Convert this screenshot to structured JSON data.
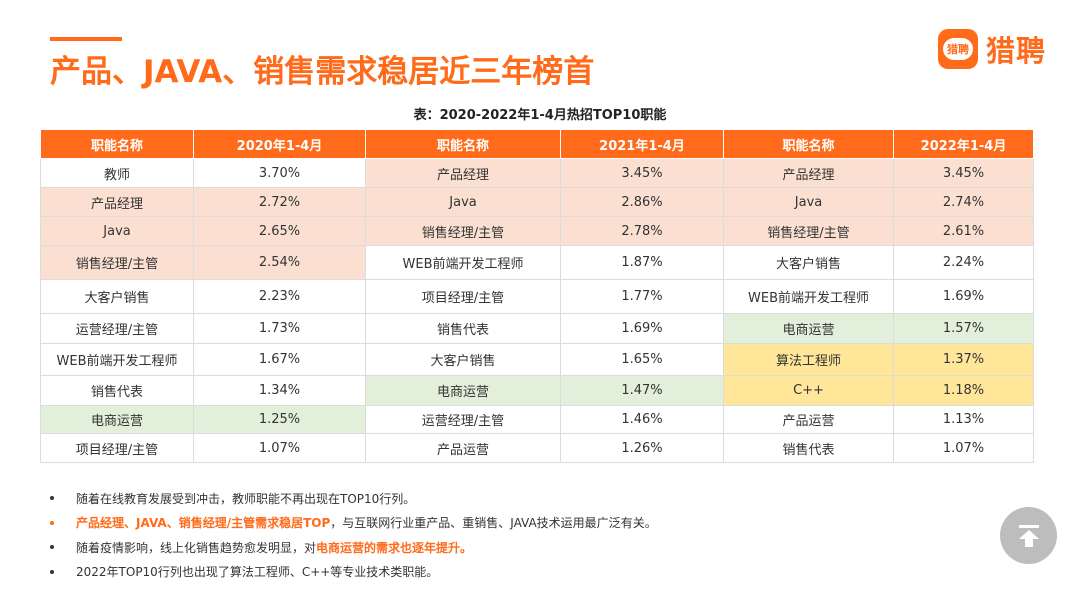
{
  "title": "产品、JAVA、销售需求稳居近三年榜首",
  "logo": {
    "mark_text": "猎聘",
    "text": "猎聘"
  },
  "table": {
    "caption": "表：2020-2022年1-4月热招TOP10职能",
    "headers": [
      "职能名称",
      "2020年1-4月",
      "职能名称",
      "2021年1-4月",
      "职能名称",
      "2022年1-4月"
    ],
    "row_heights": [
      29,
      29,
      29,
      34,
      34,
      30,
      32,
      30,
      28,
      29
    ],
    "colors": {
      "header": "#ff6b1a",
      "peach": "#fbe0d2",
      "green": "#e2efda",
      "yellow": "#ffe699",
      "white": "#ffffff"
    },
    "rows": [
      [
        {
          "text": "教师",
          "bg": "white"
        },
        {
          "text": "3.70%",
          "bg": "white"
        },
        {
          "text": "产品经理",
          "bg": "peach"
        },
        {
          "text": "3.45%",
          "bg": "peach"
        },
        {
          "text": "产品经理",
          "bg": "peach"
        },
        {
          "text": "3.45%",
          "bg": "peach"
        }
      ],
      [
        {
          "text": "产品经理",
          "bg": "peach"
        },
        {
          "text": "2.72%",
          "bg": "peach"
        },
        {
          "text": "Java",
          "bg": "peach"
        },
        {
          "text": "2.86%",
          "bg": "peach"
        },
        {
          "text": "Java",
          "bg": "peach"
        },
        {
          "text": "2.74%",
          "bg": "peach"
        }
      ],
      [
        {
          "text": "Java",
          "bg": "peach"
        },
        {
          "text": "2.65%",
          "bg": "peach"
        },
        {
          "text": "销售经理/主管",
          "bg": "peach"
        },
        {
          "text": "2.78%",
          "bg": "peach"
        },
        {
          "text": "销售经理/主管",
          "bg": "peach"
        },
        {
          "text": "2.61%",
          "bg": "peach"
        }
      ],
      [
        {
          "text": "销售经理/主管",
          "bg": "peach"
        },
        {
          "text": "2.54%",
          "bg": "peach"
        },
        {
          "text": "WEB前端开发工程师",
          "bg": "white"
        },
        {
          "text": "1.87%",
          "bg": "white"
        },
        {
          "text": "大客户销售",
          "bg": "white"
        },
        {
          "text": "2.24%",
          "bg": "white"
        }
      ],
      [
        {
          "text": "大客户销售",
          "bg": "white"
        },
        {
          "text": "2.23%",
          "bg": "white"
        },
        {
          "text": "项目经理/主管",
          "bg": "white"
        },
        {
          "text": "1.77%",
          "bg": "white"
        },
        {
          "text": "WEB前端开发工程师",
          "bg": "white"
        },
        {
          "text": "1.69%",
          "bg": "white"
        }
      ],
      [
        {
          "text": "运营经理/主管",
          "bg": "white"
        },
        {
          "text": "1.73%",
          "bg": "white"
        },
        {
          "text": "销售代表",
          "bg": "white"
        },
        {
          "text": "1.69%",
          "bg": "white"
        },
        {
          "text": "电商运营",
          "bg": "green"
        },
        {
          "text": "1.57%",
          "bg": "green"
        }
      ],
      [
        {
          "text": "WEB前端开发工程师",
          "bg": "white"
        },
        {
          "text": "1.67%",
          "bg": "white"
        },
        {
          "text": "大客户销售",
          "bg": "white"
        },
        {
          "text": "1.65%",
          "bg": "white"
        },
        {
          "text": "算法工程师",
          "bg": "yellow"
        },
        {
          "text": "1.37%",
          "bg": "yellow"
        }
      ],
      [
        {
          "text": "销售代表",
          "bg": "white"
        },
        {
          "text": "1.34%",
          "bg": "white"
        },
        {
          "text": "电商运营",
          "bg": "green"
        },
        {
          "text": "1.47%",
          "bg": "green"
        },
        {
          "text": "C++",
          "bg": "yellow"
        },
        {
          "text": "1.18%",
          "bg": "yellow"
        }
      ],
      [
        {
          "text": "电商运营",
          "bg": "green"
        },
        {
          "text": "1.25%",
          "bg": "green"
        },
        {
          "text": "运营经理/主管",
          "bg": "white"
        },
        {
          "text": "1.46%",
          "bg": "white"
        },
        {
          "text": "产品运营",
          "bg": "white"
        },
        {
          "text": "1.13%",
          "bg": "white"
        }
      ],
      [
        {
          "text": "项目经理/主管",
          "bg": "white"
        },
        {
          "text": "1.07%",
          "bg": "white"
        },
        {
          "text": "产品运营",
          "bg": "white"
        },
        {
          "text": "1.26%",
          "bg": "white"
        },
        {
          "text": "销售代表",
          "bg": "white"
        },
        {
          "text": "1.07%",
          "bg": "white"
        }
      ]
    ]
  },
  "bullets": {
    "b1": "随着在线教育发展受到冲击，教师职能不再出现在TOP10行列。",
    "b2_highlight": "产品经理、JAVA、销售经理/主管需求稳居TOP",
    "b2_rest": "，与互联网行业重产品、重销售、JAVA技术运用最广泛有关。",
    "b3_pre": "随着疫情影响，线上化销售趋势愈发明显，对",
    "b3_highlight": "电商运营的需求也逐年提升。",
    "b4": "2022年TOP10行列也出现了算法工程师、C++等专业技术类职能。"
  },
  "scroll_top_icon": "arrow-up-to-top-icon"
}
